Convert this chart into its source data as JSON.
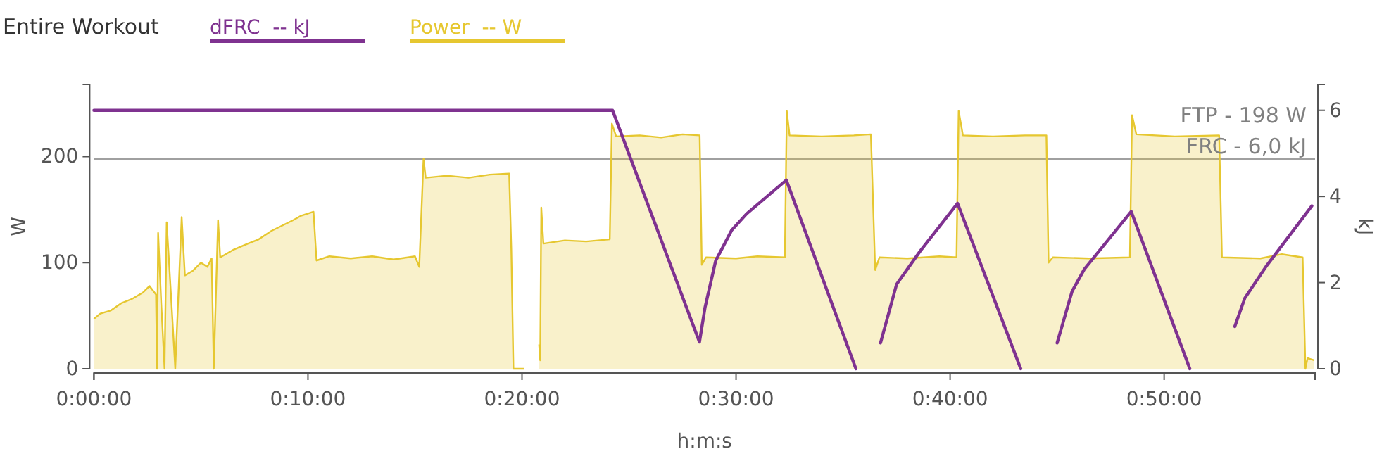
{
  "chart_data": {
    "type": "line",
    "title": "Entire Workout",
    "xlabel": "h:m:s",
    "ylabel": "W",
    "y2label": "kJ",
    "xlim": [
      0,
      57.05
    ],
    "xticks": [
      {
        "value": 0,
        "label": "0:00:00"
      },
      {
        "value": 10,
        "label": "0:10:00"
      },
      {
        "value": 20,
        "label": "0:20:00"
      },
      {
        "value": 30,
        "label": "0:30:00"
      },
      {
        "value": 40,
        "label": "0:40:00"
      },
      {
        "value": 50,
        "label": "0:50:00"
      }
    ],
    "ylim": [
      0,
      268
    ],
    "yticks": [
      0,
      100,
      200
    ],
    "y2lim": [
      0,
      6.6
    ],
    "y2ticks": [
      0,
      2,
      4,
      6
    ],
    "legend": "top left",
    "grid": false,
    "ref_lines": [
      {
        "axis": "y",
        "value": 198,
        "label": "FTP - 198 W",
        "color": "#a0a0a0"
      }
    ],
    "annotations": [
      "FRC - 6,0 kJ"
    ],
    "series": [
      {
        "name": "dFRC  -- kJ",
        "axis": "y2",
        "color": "#7f3290",
        "x": [
          0,
          24.23,
          28.29,
          28.55,
          29.05,
          29.8,
          30.5,
          32.35,
          35.6,
          36.61,
          36.75,
          37.5,
          38.6,
          40.35,
          43.3,
          44.85,
          45.0,
          45.7,
          46.27,
          48.46,
          51.2,
          52.9,
          53.3,
          53.77,
          54.8,
          56.9
        ],
        "values": [
          6.0,
          6.0,
          0.62,
          1.42,
          2.51,
          3.22,
          3.6,
          4.38,
          0,
          null,
          0.6,
          1.96,
          2.73,
          3.84,
          0,
          null,
          0.6,
          1.8,
          2.31,
          3.65,
          0,
          null,
          0.98,
          1.64,
          2.4,
          3.78
        ]
      },
      {
        "name": "Power  -- W",
        "type": "area",
        "color": "#e6c730",
        "x": [
          0,
          0.3,
          0.8,
          1.3,
          1.8,
          2.3,
          2.6,
          2.9,
          2.95,
          3.0,
          3.15,
          3.3,
          3.4,
          3.6,
          3.8,
          4.1,
          4.25,
          4.6,
          5.0,
          5.3,
          5.5,
          5.6,
          5.8,
          5.9,
          6.5,
          7.2,
          7.7,
          8.3,
          8.9,
          9.3,
          9.65,
          10.26,
          10.4,
          11,
          12,
          13,
          14,
          15.0,
          15.2,
          15.4,
          15.5,
          16.5,
          17.5,
          18.5,
          19.4,
          19.5,
          19.6,
          20.1,
          20.4,
          20.8,
          20.85,
          20.9,
          21.0,
          22,
          23,
          24.1,
          24.2,
          24.4,
          25.5,
          26.5,
          27.5,
          28.3,
          28.4,
          28.6,
          30,
          31,
          32.28,
          32.37,
          32.5,
          34,
          35.5,
          36.3,
          36.5,
          36.7,
          38,
          39.5,
          40.3,
          40.4,
          40.6,
          42,
          43.5,
          44.5,
          44.6,
          44.8,
          46.5,
          48.4,
          48.5,
          48.7,
          50.5,
          52.57,
          52.7,
          54.5,
          55.5,
          56.47,
          56.6,
          56.7,
          57.0
        ],
        "values": [
          47,
          52,
          55,
          62,
          66,
          72,
          78,
          70,
          0,
          128,
          60,
          0,
          138,
          70,
          0,
          143,
          88,
          92,
          100,
          96,
          104,
          0,
          140,
          105,
          112,
          118,
          122,
          130,
          136,
          140,
          144,
          148,
          102,
          106,
          104,
          106,
          103,
          106,
          96,
          198,
          180,
          182,
          180,
          183,
          184,
          113,
          0,
          0,
          null,
          23,
          8,
          152,
          118,
          121,
          120,
          122,
          231,
          219,
          220,
          218,
          221,
          220,
          98,
          105,
          104,
          106,
          105,
          243,
          220,
          219,
          220,
          221,
          93,
          105,
          104,
          106,
          105,
          243,
          220,
          219,
          220,
          220,
          100,
          105,
          104,
          105,
          239,
          221,
          219,
          220,
          105,
          104,
          108,
          105,
          0,
          10,
          8
        ]
      }
    ]
  }
}
